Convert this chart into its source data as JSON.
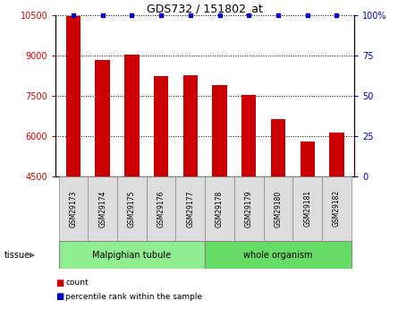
{
  "title": "GDS732 / 151802_at",
  "samples": [
    "GSM29173",
    "GSM29174",
    "GSM29175",
    "GSM29176",
    "GSM29177",
    "GSM29178",
    "GSM29179",
    "GSM29180",
    "GSM29181",
    "GSM29182"
  ],
  "counts": [
    10480,
    8820,
    9040,
    8220,
    8270,
    7900,
    7520,
    6620,
    5800,
    6120
  ],
  "percentiles": [
    100,
    100,
    100,
    100,
    100,
    100,
    100,
    100,
    100,
    100
  ],
  "bar_color": "#CC0000",
  "dot_color": "#0000CC",
  "ylim_left": [
    4500,
    10500
  ],
  "yticks_left": [
    4500,
    6000,
    7500,
    9000,
    10500
  ],
  "ylim_right": [
    0,
    100
  ],
  "yticks_right": [
    0,
    25,
    50,
    75,
    100
  ],
  "tissue_groups": {
    "Malpighian tubule": [
      0,
      1,
      2,
      3,
      4
    ],
    "whole organism": [
      5,
      6,
      7,
      8,
      9
    ]
  },
  "tissue_color_1": "#90EE90",
  "tissue_color_2": "#66DD66",
  "bar_color_label": "#CC0000",
  "dot_color_label": "#0000CC",
  "legend_count_label": "count",
  "legend_pct_label": "percentile rank within the sample",
  "xlabel_gray": "#CCCCCC",
  "sample_box_color": "#DDDDDD"
}
